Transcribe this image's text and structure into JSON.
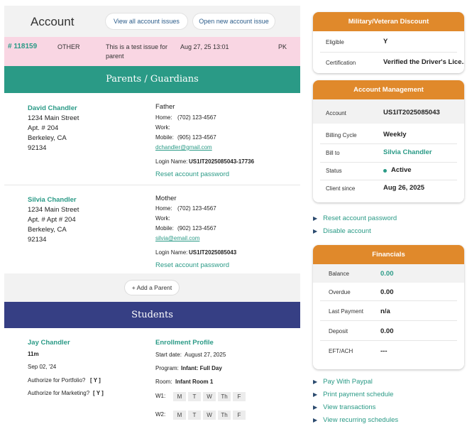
{
  "account": {
    "title": "Account",
    "view_all_label": "View all account issues",
    "open_new_label": "Open new account issue"
  },
  "issue": {
    "id": "# 118159",
    "type": "OTHER",
    "desc_line1": "This is a test issue for",
    "desc_line2": "parent",
    "date": "Aug 27, 25 13:01",
    "initials": "PK"
  },
  "parents_title": "Parents / Guardians",
  "parents": [
    {
      "name": "David Chandler",
      "addr1": "1234 Main Street",
      "addr2": "Apt. # 204",
      "addr3": "Berkeley, CA",
      "addr4": "92134",
      "relation": "Father",
      "home_label": "Home:",
      "home": "(702) 123-4567",
      "work_label": "Work:",
      "work": "",
      "mobile_label": "Mobile:",
      "mobile": "(905) 123-4567",
      "email": "dchandler@gmail.com",
      "login_label": "Login Name:",
      "login": "US1IT2025085043-17736",
      "reset_label": "Reset account password"
    },
    {
      "name": "Silvia Chandler",
      "addr1": "1234 Main Street",
      "addr2": "Apt. # Apt # 204",
      "addr3": "Berkeley, CA",
      "addr4": "92134",
      "relation": "Mother",
      "home_label": "Home:",
      "home": "(702) 123-4567",
      "work_label": "Work:",
      "work": "",
      "mobile_label": "Mobile:",
      "mobile": "(902) 123-4567",
      "email": "silvia@email.com",
      "login_label": "Login Name:",
      "login": "US1IT2025085043",
      "reset_label": "Reset account password"
    }
  ],
  "add_parent_label": "+ Add a Parent",
  "students_title": "Students",
  "student": {
    "name": "Jay Chandler",
    "age": "11m",
    "dob": "Sep 02, '24",
    "portfolio_label": "Authorize for Portfolio?",
    "portfolio_value": "[ Y ]",
    "marketing_label": "Authorize for Marketing?",
    "marketing_value": "[ Y ]",
    "enroll_title": "Enrollment Profile",
    "start_label": "Start date:",
    "start_value": "August 27, 2025",
    "program_label": "Program:",
    "program_value": "Infant: Full Day",
    "room_label": "Room:",
    "room_value": "Infant Room 1",
    "w1_label": "W1:",
    "w2_label": "W2:",
    "days": [
      "M",
      "T",
      "W",
      "Th",
      "F"
    ]
  },
  "military": {
    "title": "Military/Veteran Discount",
    "eligible_label": "Eligible",
    "eligible_value": "Y",
    "cert_label": "Certification",
    "cert_value": "Verified the Driver's Lice..."
  },
  "account_mgmt": {
    "title": "Account Management",
    "account_label": "Account",
    "account_value": "US1IT2025085043",
    "billing_label": "Billing Cycle",
    "billing_value": "Weekly",
    "billto_label": "Bill to",
    "billto_value": "Silvia Chandler",
    "status_label": "Status",
    "status_value": "Active",
    "client_label": "Client since",
    "client_value": "Aug 26, 2025"
  },
  "account_links": [
    "Reset account password",
    "Disable account"
  ],
  "financials": {
    "title": "Financials",
    "balance_label": "Balance",
    "balance_value": "0.00",
    "overdue_label": "Overdue",
    "overdue_value": "0.00",
    "last_label": "Last Payment",
    "last_value": "n/a",
    "deposit_label": "Deposit",
    "deposit_value": "0.00",
    "eft_label": "EFT/ACH",
    "eft_value": "---"
  },
  "fin_links": [
    "Pay With Paypal",
    "Print payment schedule",
    "View transactions",
    "View recurring schedules"
  ],
  "colors": {
    "teal": "#2a9a86",
    "navy": "#363f84",
    "orange": "#e0892b",
    "pink": "#f9d6e3"
  }
}
